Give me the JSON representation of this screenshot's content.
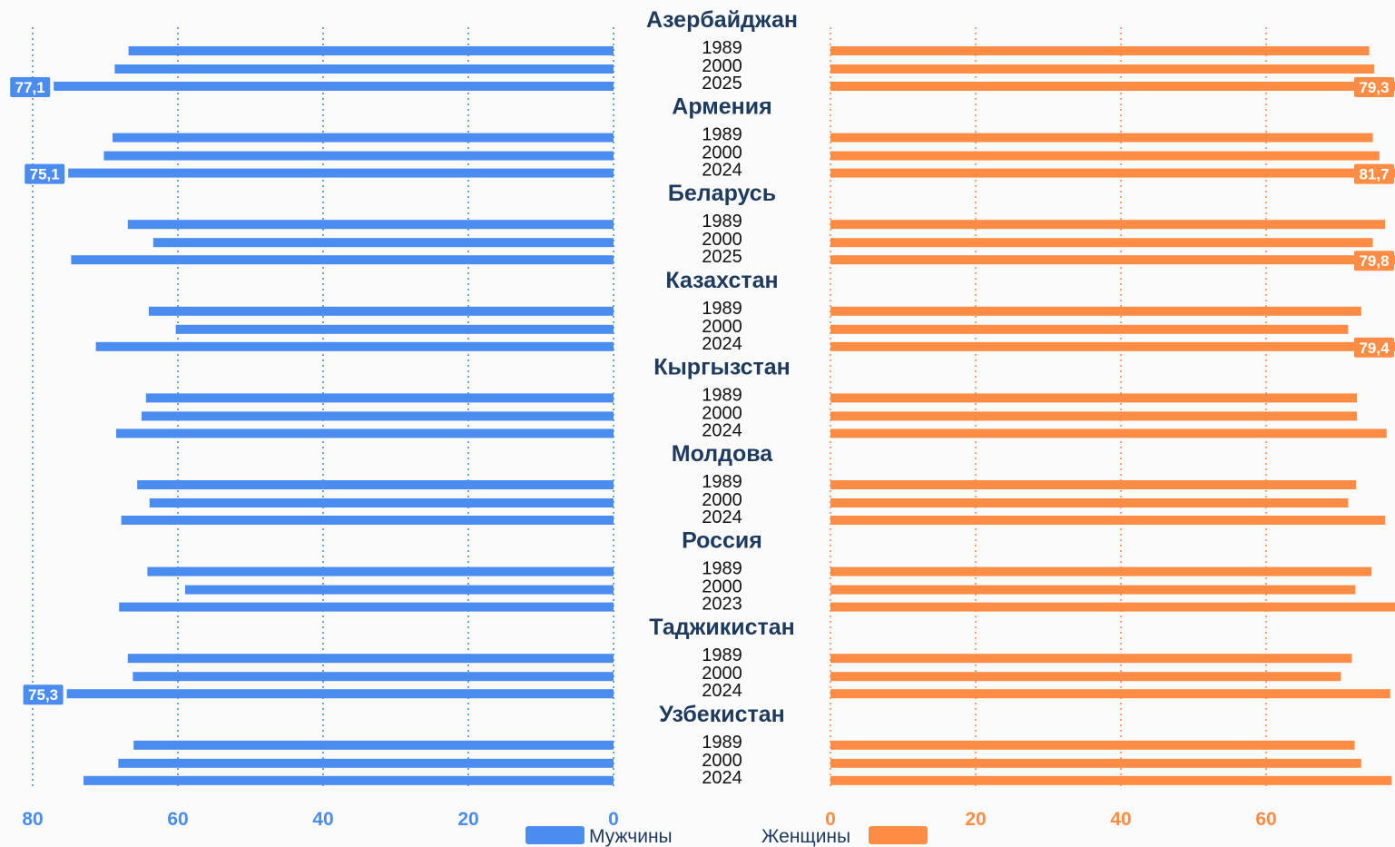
{
  "chart_data": {
    "type": "bar",
    "orientation": "horizontal-butterfly",
    "colors": {
      "men": "#4a8cf0",
      "women": "#ff8c44",
      "country_text": "#1e3a5c",
      "year_text": "#111111",
      "grid_men": "#4a8cf0",
      "grid_women": "#ff8c44"
    },
    "xlim_left": [
      80,
      0
    ],
    "xlim_right": [
      0,
      80
    ],
    "ticks_left": [
      "80",
      "60",
      "40",
      "20",
      "0"
    ],
    "tick_values_left": [
      80,
      60,
      40,
      20,
      0
    ],
    "ticks_right": [
      "0",
      "20",
      "40",
      "60",
      "80"
    ],
    "tick_values_right": [
      0,
      20,
      40,
      60,
      80
    ],
    "grid": true,
    "legend": {
      "position": "bottom-center",
      "men": "Мужчины",
      "women": "Женщины"
    },
    "groups": [
      {
        "country": "Азербайджан",
        "years": [
          "1989",
          "2000",
          "2025"
        ],
        "men": [
          66.8,
          68.7,
          77.1
        ],
        "women": [
          74.2,
          74.9,
          79.3
        ],
        "men_labels": [
          "",
          "",
          "77,1"
        ],
        "women_labels": [
          "",
          "",
          "79,3"
        ]
      },
      {
        "country": "Армения",
        "years": [
          "1989",
          "2000",
          "2024"
        ],
        "men": [
          69.0,
          70.2,
          75.1
        ],
        "women": [
          74.7,
          75.6,
          81.7
        ],
        "men_labels": [
          "",
          "",
          "75,1"
        ],
        "women_labels": [
          "",
          "",
          "81,7"
        ]
      },
      {
        "country": "Беларусь",
        "years": [
          "1989",
          "2000",
          "2025"
        ],
        "men": [
          66.9,
          63.4,
          74.7
        ],
        "women": [
          76.4,
          74.7,
          79.8
        ],
        "men_labels": [
          "",
          "",
          ""
        ],
        "women_labels": [
          "",
          "",
          "79,8"
        ]
      },
      {
        "country": "Казахстан",
        "years": [
          "1989",
          "2000",
          "2024"
        ],
        "men": [
          64.0,
          60.3,
          71.3
        ],
        "women": [
          73.1,
          71.3,
          79.4
        ],
        "men_labels": [
          "",
          "",
          ""
        ],
        "women_labels": [
          "",
          "",
          "79,4"
        ]
      },
      {
        "country": "Кыргызстан",
        "years": [
          "1989",
          "2000",
          "2024"
        ],
        "men": [
          64.4,
          65.0,
          68.5
        ],
        "women": [
          72.5,
          72.5,
          76.6
        ],
        "men_labels": [
          "",
          "",
          ""
        ],
        "women_labels": [
          "",
          "",
          ""
        ]
      },
      {
        "country": "Молдова",
        "years": [
          "1989",
          "2000",
          "2024"
        ],
        "men": [
          65.6,
          63.9,
          67.8
        ],
        "women": [
          72.4,
          71.3,
          76.4
        ],
        "men_labels": [
          "",
          "",
          ""
        ],
        "women_labels": [
          "",
          "",
          ""
        ]
      },
      {
        "country": "Россия",
        "years": [
          "1989",
          "2000",
          "2023"
        ],
        "men": [
          64.2,
          59.0,
          68.1
        ],
        "women": [
          74.5,
          72.3,
          78.7
        ],
        "men_labels": [
          "",
          "",
          ""
        ],
        "women_labels": [
          "",
          "",
          ""
        ]
      },
      {
        "country": "Таджикистан",
        "years": [
          "1989",
          "2000",
          "2024"
        ],
        "men": [
          66.9,
          66.2,
          75.3
        ],
        "women": [
          71.8,
          70.3,
          77.1
        ],
        "men_labels": [
          "",
          "",
          "75,3"
        ],
        "women_labels": [
          "",
          "",
          ""
        ]
      },
      {
        "country": "Узбекистан",
        "years": [
          "1989",
          "2000",
          "2024"
        ],
        "men": [
          66.1,
          68.2,
          73.0
        ],
        "women": [
          72.2,
          73.1,
          77.3
        ],
        "men_labels": [
          "",
          "",
          ""
        ],
        "women_labels": [
          "",
          "",
          ""
        ]
      }
    ]
  }
}
